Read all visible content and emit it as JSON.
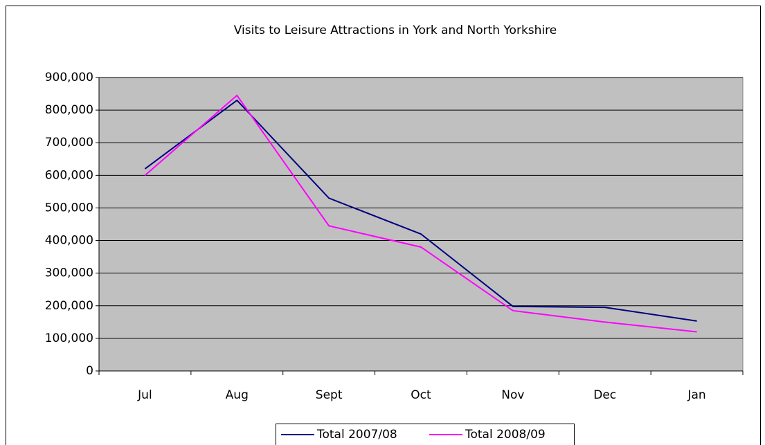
{
  "chart_data": {
    "type": "line",
    "title": "Visits to Leisure Attractions in York and North Yorkshire",
    "categories": [
      "Jul",
      "Aug",
      "Sept",
      "Oct",
      "Nov",
      "Dec",
      "Jan"
    ],
    "series": [
      {
        "name": "Total 2007/08",
        "color": "#000080",
        "values": [
          620000,
          830000,
          530000,
          420000,
          198000,
          195000,
          153000
        ]
      },
      {
        "name": "Total 2008/09",
        "color": "#ff00ff",
        "values": [
          600000,
          845000,
          445000,
          380000,
          185000,
          150000,
          120000
        ]
      }
    ],
    "ylim": [
      0,
      900000
    ],
    "yticks": [
      0,
      {
        "value": 100000,
        "label": "100,000"
      },
      {
        "value": 200000,
        "label": "200,000"
      },
      {
        "value": 300000,
        "label": "300,000"
      },
      {
        "value": 400000,
        "label": "400,000"
      },
      {
        "value": 500000,
        "label": "500,000"
      },
      {
        "value": 600000,
        "label": "600,000"
      },
      {
        "value": 700000,
        "label": "700,000"
      },
      {
        "value": 800000,
        "label": "800,000"
      },
      {
        "value": 900000,
        "label": "900,000"
      }
    ],
    "grid": true,
    "legend": "bottom",
    "plot_background": "#c0c0c0"
  }
}
